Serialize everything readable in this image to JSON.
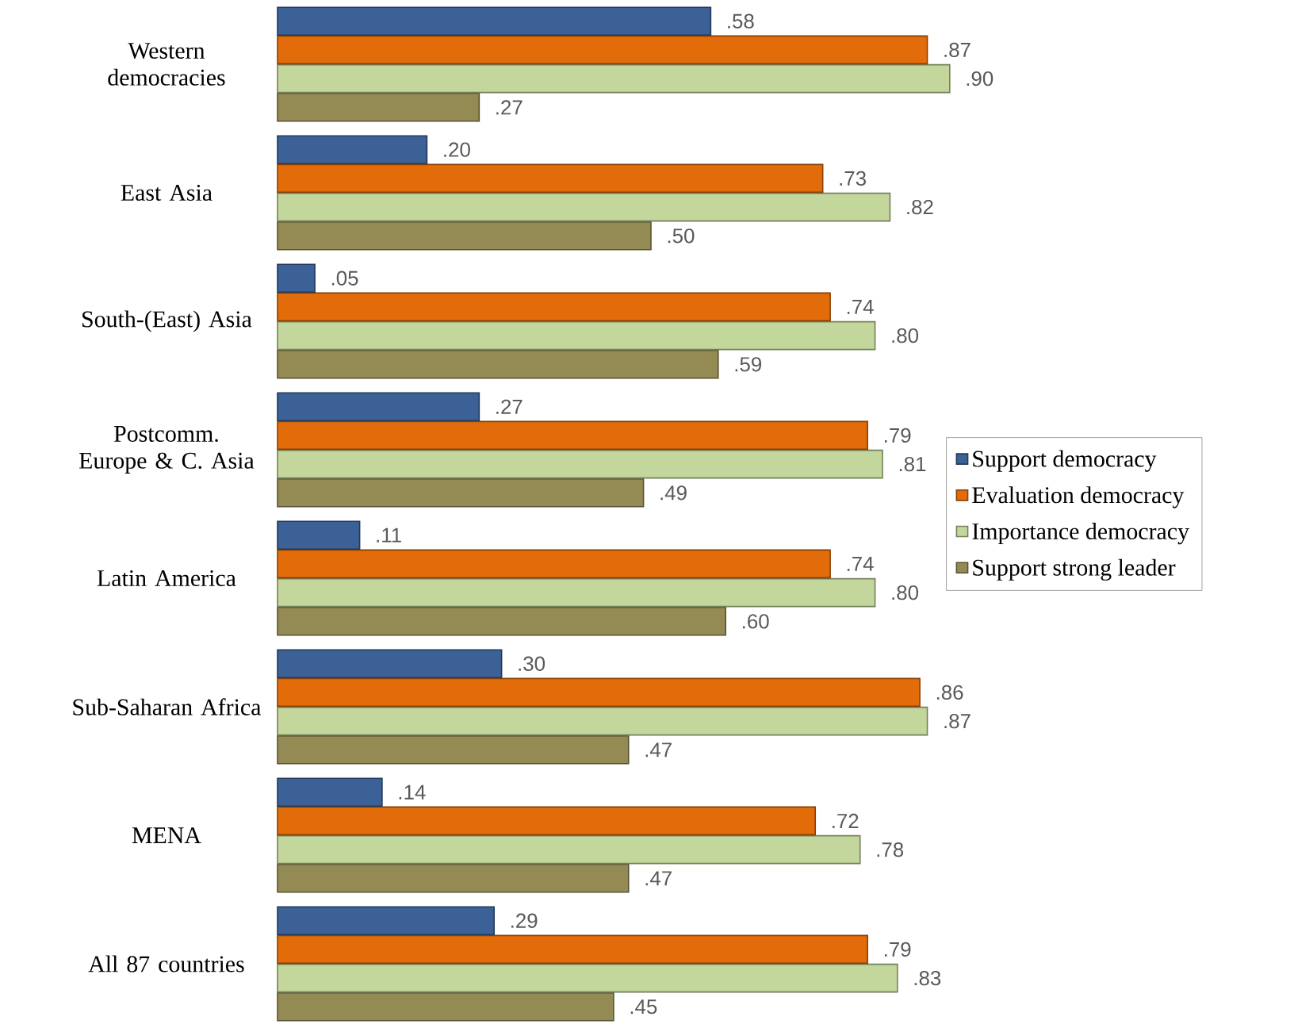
{
  "chart_data": {
    "type": "bar",
    "orientation": "horizontal",
    "legend": "right",
    "categories": [
      "Western democracies",
      "East Asia",
      "South-(East) Asia",
      "Postcomm. Europe & C. Asia",
      "Latin America",
      "Sub-Saharan Africa",
      "MENA",
      "All 87 countries"
    ],
    "series": [
      {
        "name": "Support democracy",
        "color": "#3c6196",
        "values": [
          0.58,
          0.2,
          0.05,
          0.27,
          0.11,
          0.3,
          0.14,
          0.29
        ],
        "value_labels": [
          ".58",
          ".20",
          ".05",
          ".27",
          ".11",
          ".30",
          ".14",
          ".29"
        ]
      },
      {
        "name": "Evaluation democracy",
        "color": "#e36c0a",
        "values": [
          0.87,
          0.73,
          0.74,
          0.79,
          0.74,
          0.86,
          0.72,
          0.79
        ],
        "value_labels": [
          ".87",
          ".73",
          ".74",
          ".79",
          ".74",
          ".86",
          ".72",
          ".79"
        ]
      },
      {
        "name": "Importance democracy",
        "color": "#c3d69b",
        "values": [
          0.9,
          0.82,
          0.8,
          0.81,
          0.8,
          0.87,
          0.78,
          0.83
        ],
        "value_labels": [
          ".90",
          ".82",
          ".80",
          ".81",
          ".80",
          ".87",
          ".78",
          ".83"
        ]
      },
      {
        "name": "Support strong leader",
        "color": "#948a54",
        "values": [
          0.27,
          0.5,
          0.59,
          0.49,
          0.6,
          0.47,
          0.47,
          0.45
        ],
        "value_labels": [
          ".27",
          ".50",
          ".59",
          ".49",
          ".60",
          ".47",
          ".47",
          ".45"
        ]
      }
    ]
  }
}
